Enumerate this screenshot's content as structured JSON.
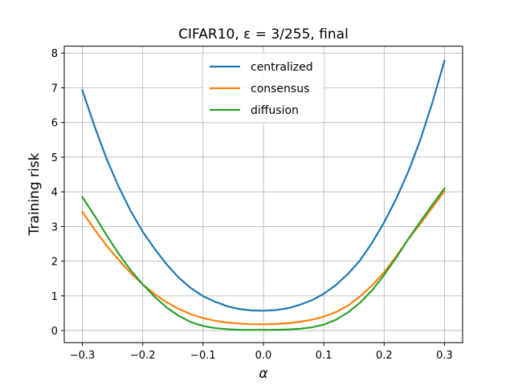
{
  "chart_data": {
    "type": "line",
    "title": "CIFAR10, ε = 3/255, final",
    "xlabel": "α",
    "ylabel": "Training risk",
    "xlim": [
      -0.33,
      0.33
    ],
    "ylim": [
      -0.35,
      8.2
    ],
    "xticks": [
      -0.3,
      -0.2,
      -0.1,
      0.0,
      0.1,
      0.2,
      0.3
    ],
    "xtick_labels": [
      "−0.3",
      "−0.2",
      "−0.1",
      "0.0",
      "0.1",
      "0.2",
      "0.3"
    ],
    "yticks": [
      0,
      1,
      2,
      3,
      4,
      5,
      6,
      7,
      8
    ],
    "ytick_labels": [
      "0",
      "1",
      "2",
      "3",
      "4",
      "5",
      "6",
      "7",
      "8"
    ],
    "grid": true,
    "legend_position": "top-center",
    "x": [
      -0.3,
      -0.28,
      -0.26,
      -0.24,
      -0.22,
      -0.2,
      -0.18,
      -0.16,
      -0.14,
      -0.12,
      -0.1,
      -0.08,
      -0.06,
      -0.04,
      -0.02,
      0.0,
      0.02,
      0.04,
      0.06,
      0.08,
      0.1,
      0.12,
      0.14,
      0.16,
      0.18,
      0.2,
      0.22,
      0.24,
      0.26,
      0.28,
      0.3
    ],
    "series": [
      {
        "name": "centralized",
        "color": "#1f77b4",
        "values": [
          6.93,
          5.9,
          4.96,
          4.15,
          3.45,
          2.85,
          2.35,
          1.9,
          1.52,
          1.22,
          0.99,
          0.83,
          0.7,
          0.62,
          0.58,
          0.57,
          0.59,
          0.64,
          0.74,
          0.87,
          1.06,
          1.31,
          1.63,
          2.02,
          2.53,
          3.12,
          3.8,
          4.58,
          5.5,
          6.58,
          7.78
        ]
      },
      {
        "name": "consensus",
        "color": "#ff7f0e",
        "values": [
          3.42,
          2.92,
          2.45,
          2.04,
          1.66,
          1.33,
          1.05,
          0.81,
          0.62,
          0.47,
          0.36,
          0.28,
          0.23,
          0.2,
          0.18,
          0.18,
          0.19,
          0.21,
          0.25,
          0.31,
          0.4,
          0.53,
          0.72,
          0.98,
          1.3,
          1.68,
          2.14,
          2.63,
          3.08,
          3.55,
          4.02
        ]
      },
      {
        "name": "diffusion",
        "color": "#2ca02c",
        "values": [
          3.85,
          3.32,
          2.75,
          2.22,
          1.74,
          1.33,
          0.97,
          0.66,
          0.42,
          0.24,
          0.13,
          0.07,
          0.04,
          0.02,
          0.02,
          0.02,
          0.02,
          0.03,
          0.05,
          0.09,
          0.17,
          0.31,
          0.52,
          0.8,
          1.16,
          1.6,
          2.1,
          2.64,
          3.14,
          3.63,
          4.1
        ]
      }
    ]
  }
}
